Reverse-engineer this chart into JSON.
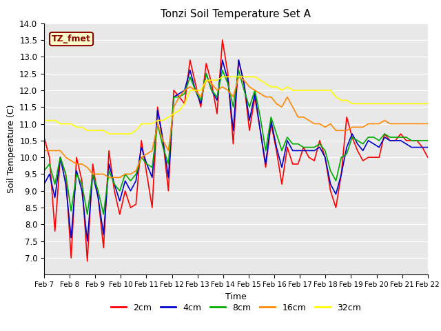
{
  "title": "Tonzi Soil Temperature Set A",
  "xlabel": "Time",
  "ylabel": "Soil Temperature (C)",
  "ylim": [
    6.5,
    14.0
  ],
  "yticks": [
    7.0,
    7.5,
    8.0,
    8.5,
    9.0,
    9.5,
    10.0,
    10.5,
    11.0,
    11.5,
    12.0,
    12.5,
    13.0,
    13.5,
    14.0
  ],
  "xtick_labels": [
    "Feb 7",
    "Feb 8",
    "Feb 9",
    "Feb 10",
    "Feb 11",
    "Feb 12",
    "Feb 13",
    "Feb 14",
    "Feb 15",
    "Feb 16",
    "Feb 17",
    "Feb 18",
    "Feb 19",
    "Feb 20",
    "Feb 21",
    "Feb 22"
  ],
  "annotation_text": "TZ_fmet",
  "annotation_color": "#8B0000",
  "annotation_bg": "#FFFFCC",
  "annotation_border": "#8B0000",
  "colors": {
    "2cm": "#FF0000",
    "4cm": "#0000CC",
    "8cm": "#00AA00",
    "16cm": "#FF8800",
    "32cm": "#FFFF00"
  },
  "line_width": 1.2,
  "series": {
    "2cm": [
      10.6,
      10.0,
      7.8,
      10.0,
      9.5,
      7.0,
      10.0,
      9.3,
      6.9,
      9.8,
      8.8,
      7.3,
      10.2,
      9.0,
      8.3,
      9.0,
      8.5,
      8.6,
      10.5,
      9.5,
      8.5,
      11.5,
      10.5,
      9.0,
      12.0,
      11.8,
      11.6,
      12.9,
      12.2,
      11.5,
      12.8,
      12.2,
      11.3,
      13.5,
      12.5,
      10.4,
      12.9,
      12.2,
      10.8,
      11.8,
      10.8,
      9.7,
      11.0,
      10.2,
      9.2,
      10.3,
      9.8,
      9.8,
      10.3,
      10.0,
      9.9,
      10.5,
      10.0,
      9.0,
      8.5,
      9.5,
      11.2,
      10.6,
      10.2,
      9.9,
      10.0,
      10.0,
      10.0,
      10.7,
      10.5,
      10.5,
      10.7,
      10.5,
      10.5,
      10.5,
      10.3,
      10.0
    ],
    "4cm": [
      9.2,
      9.5,
      8.8,
      10.0,
      9.2,
      7.6,
      9.6,
      9.0,
      7.5,
      9.5,
      8.8,
      7.7,
      9.8,
      9.2,
      8.7,
      9.3,
      9.0,
      9.3,
      10.3,
      9.8,
      9.4,
      11.4,
      10.5,
      9.4,
      11.8,
      11.9,
      12.0,
      12.6,
      12.0,
      11.6,
      12.5,
      12.0,
      11.7,
      12.9,
      12.3,
      10.8,
      12.9,
      12.2,
      11.1,
      11.9,
      10.8,
      9.8,
      11.1,
      10.3,
      9.7,
      10.5,
      10.2,
      10.2,
      10.2,
      10.2,
      10.2,
      10.3,
      10.0,
      9.2,
      8.9,
      9.5,
      10.3,
      10.7,
      10.4,
      10.2,
      10.5,
      10.4,
      10.3,
      10.6,
      10.5,
      10.5,
      10.5,
      10.4,
      10.3,
      10.3,
      10.3,
      10.3
    ],
    "8cm": [
      9.6,
      9.8,
      9.2,
      10.0,
      9.5,
      8.4,
      9.5,
      9.2,
      8.3,
      9.5,
      9.0,
      8.3,
      9.6,
      9.2,
      9.0,
      9.5,
      9.3,
      9.5,
      10.0,
      9.8,
      9.7,
      11.0,
      10.3,
      9.8,
      11.8,
      11.8,
      11.9,
      12.4,
      12.0,
      11.7,
      12.5,
      12.0,
      11.8,
      12.6,
      12.2,
      11.5,
      12.6,
      12.0,
      11.5,
      12.0,
      11.2,
      10.2,
      11.2,
      10.7,
      10.2,
      10.6,
      10.4,
      10.4,
      10.3,
      10.3,
      10.3,
      10.4,
      10.2,
      9.6,
      9.3,
      10.0,
      10.1,
      10.6,
      10.5,
      10.4,
      10.6,
      10.6,
      10.5,
      10.7,
      10.6,
      10.6,
      10.6,
      10.6,
      10.5,
      10.5,
      10.5,
      10.5
    ],
    "16cm": [
      10.2,
      10.2,
      10.2,
      10.2,
      10.0,
      9.9,
      9.8,
      9.8,
      9.7,
      9.5,
      9.5,
      9.5,
      9.4,
      9.4,
      9.4,
      9.5,
      9.5,
      9.6,
      10.0,
      10.1,
      10.2,
      11.0,
      10.5,
      10.2,
      11.5,
      11.8,
      12.0,
      12.1,
      12.0,
      11.8,
      12.3,
      12.2,
      12.0,
      12.1,
      12.0,
      11.8,
      12.4,
      12.3,
      12.1,
      12.0,
      11.9,
      11.8,
      11.8,
      11.6,
      11.5,
      11.8,
      11.5,
      11.2,
      11.2,
      11.1,
      11.0,
      11.0,
      10.9,
      11.0,
      10.8,
      10.8,
      10.8,
      10.9,
      10.9,
      10.9,
      11.0,
      11.0,
      11.0,
      11.1,
      11.0,
      11.0,
      11.0,
      11.0,
      11.0,
      11.0,
      11.0,
      11.0
    ],
    "32cm": [
      11.1,
      11.1,
      11.1,
      11.0,
      11.0,
      11.0,
      10.9,
      10.9,
      10.8,
      10.8,
      10.8,
      10.8,
      10.7,
      10.7,
      10.7,
      10.7,
      10.7,
      10.8,
      11.0,
      11.0,
      11.0,
      11.1,
      11.1,
      11.2,
      11.3,
      11.4,
      11.6,
      12.0,
      12.0,
      12.0,
      12.3,
      12.3,
      12.3,
      12.4,
      12.4,
      12.4,
      12.4,
      12.4,
      12.4,
      12.4,
      12.3,
      12.2,
      12.1,
      12.1,
      12.0,
      12.1,
      12.0,
      12.0,
      12.0,
      12.0,
      12.0,
      12.0,
      12.0,
      12.0,
      11.8,
      11.7,
      11.7,
      11.6,
      11.6,
      11.6,
      11.6,
      11.6,
      11.6,
      11.6,
      11.6,
      11.6,
      11.6,
      11.6,
      11.6,
      11.6,
      11.6,
      11.6
    ]
  }
}
